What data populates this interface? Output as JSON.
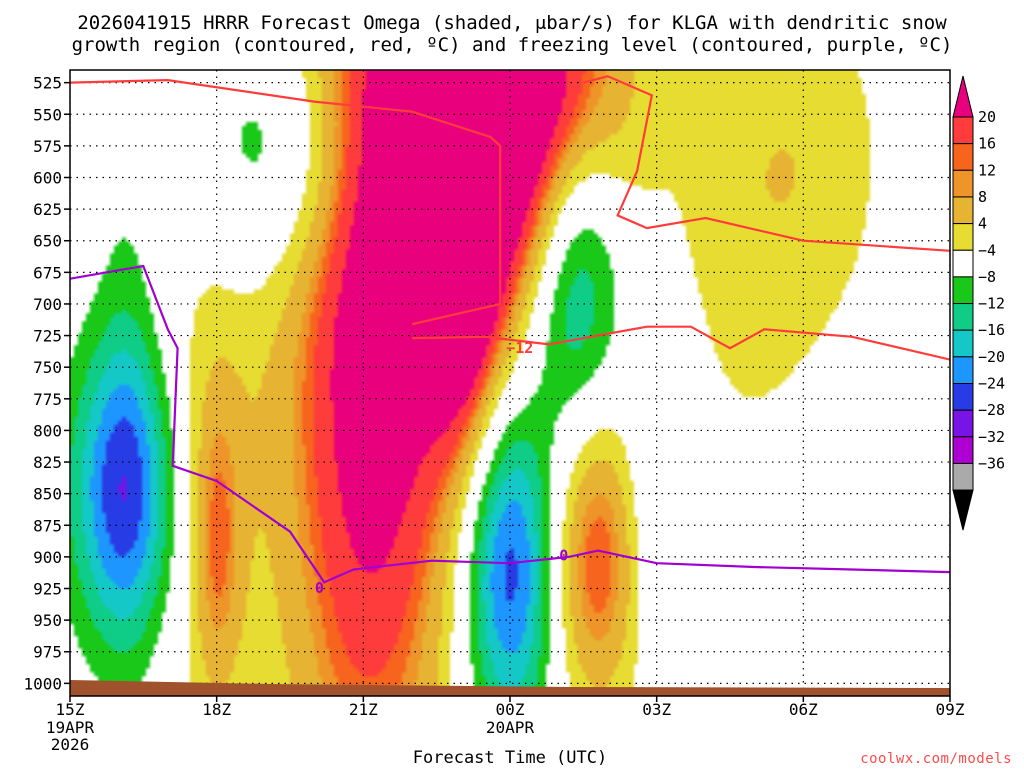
{
  "chart_data": {
    "type": "heatmap",
    "title_line1": "2026041915 HRRR Forecast Omega (shaded, μbar/s) for KLGA with dendritic snow",
    "title_line2": "growth region (contoured, red, ºC) and freezing level (contoured, purple, ºC)",
    "xlabel": "Forecast Time (UTC)",
    "x_ticks": [
      {
        "h": 0,
        "label": "15Z",
        "sub": [
          "19APR",
          "2026"
        ]
      },
      {
        "h": 3,
        "label": "18Z",
        "sub": []
      },
      {
        "h": 6,
        "label": "21Z",
        "sub": []
      },
      {
        "h": 9,
        "label": "00Z",
        "sub": [
          "20APR"
        ]
      },
      {
        "h": 12,
        "label": "03Z",
        "sub": []
      },
      {
        "h": 15,
        "label": "06Z",
        "sub": []
      },
      {
        "h": 18,
        "label": "09Z",
        "sub": []
      }
    ],
    "x_range_hours": [
      0,
      18
    ],
    "y_levels": [
      525,
      550,
      575,
      600,
      625,
      650,
      675,
      700,
      725,
      750,
      775,
      800,
      825,
      850,
      875,
      900,
      925,
      950,
      975,
      1000
    ],
    "y_range": [
      515,
      1010
    ],
    "colorbar": {
      "labels": [
        "20",
        "16",
        "12",
        "8",
        "4",
        "−4",
        "−8",
        "−12",
        "−16",
        "−20",
        "−24",
        "−28",
        "−32",
        "−36"
      ],
      "colors": [
        "#e8007d",
        "#ff3c3c",
        "#f7641e",
        "#ef9428",
        "#e6b432",
        "#e6dc32",
        "#ffffff",
        "#19c819",
        "#0fcd87",
        "#14c8c8",
        "#1e96ff",
        "#283ce6",
        "#7814e6",
        "#ad00d2",
        "#aaaaaa",
        "#000000"
      ]
    },
    "omega_blobs": [
      {
        "h": 1.2,
        "p": 760,
        "rh": 0.65,
        "rp": 250,
        "peak": -4
      },
      {
        "h": 1.1,
        "p": 848,
        "rh": 1.1,
        "rp": 120,
        "peak": -22
      },
      {
        "h": 4.5,
        "p": 580,
        "rh": 2.0,
        "rp": 110,
        "peak": -13
      },
      {
        "h": 2.8,
        "p": 800,
        "rh": 1.4,
        "rp": 280,
        "peak": 6
      },
      {
        "h": 3.0,
        "p": 890,
        "rh": 0.5,
        "rp": 120,
        "peak": 10
      },
      {
        "h": 6.1,
        "p": 770,
        "rh": 1.8,
        "rp": 390,
        "peak": 22
      },
      {
        "h": 7.2,
        "p": 545,
        "rh": 2.8,
        "rp": 170,
        "peak": 9
      },
      {
        "h": 8.0,
        "p": 580,
        "rh": 1.8,
        "rp": 250,
        "peak": 12
      },
      {
        "h": 8.0,
        "p": 640,
        "rh": 0.7,
        "rp": 150,
        "peak": 19
      },
      {
        "h": 10.1,
        "p": 535,
        "rh": 1.5,
        "rp": 120,
        "peak": 20
      },
      {
        "h": 9.0,
        "p": 600,
        "rh": 1.2,
        "rp": 180,
        "peak": 8
      },
      {
        "h": 10.3,
        "p": 670,
        "rh": 1.0,
        "rp": 160,
        "peak": -19
      },
      {
        "h": 9.0,
        "p": 905,
        "rh": 0.95,
        "rp": 135,
        "peak": -25
      },
      {
        "h": 10.8,
        "p": 890,
        "rh": 1.1,
        "rp": 130,
        "peak": 19
      },
      {
        "h": 11.9,
        "p": 865,
        "rh": 0.8,
        "rp": 125,
        "peak": -8
      },
      {
        "h": 13.8,
        "p": 620,
        "rh": 1.6,
        "rp": 220,
        "peak": 6
      },
      {
        "h": 15.5,
        "p": 585,
        "rh": 1.5,
        "rp": 150,
        "peak": 5
      }
    ],
    "dgz_top_minus12": [
      [
        0,
        525
      ],
      [
        2,
        523
      ],
      [
        5,
        540
      ],
      [
        7,
        548
      ],
      [
        8.6,
        568
      ],
      [
        8.8,
        575
      ],
      [
        8.8,
        700
      ],
      [
        7,
        716
      ]
    ],
    "dgz_upper_branch": [
      [
        10.5,
        525
      ],
      [
        11,
        520
      ],
      [
        11.9,
        535
      ],
      [
        11.6,
        595
      ],
      [
        11.2,
        630
      ],
      [
        11.8,
        640
      ],
      [
        13,
        632
      ],
      [
        15,
        650
      ],
      [
        18,
        658
      ]
    ],
    "dgz_lower_branch": [
      [
        7,
        727
      ],
      [
        8.5,
        726
      ],
      [
        9.8,
        732
      ],
      [
        11.8,
        718
      ],
      [
        12.7,
        718
      ],
      [
        13.5,
        735
      ],
      [
        14.2,
        720
      ],
      [
        16,
        726
      ],
      [
        18,
        744
      ]
    ],
    "contour_label_minus12": "−12",
    "freezing_level": [
      [
        0,
        680
      ],
      [
        1.5,
        670
      ],
      [
        2,
        720
      ],
      [
        2.2,
        735
      ],
      [
        2.1,
        828
      ],
      [
        3,
        840
      ],
      [
        4.5,
        880
      ],
      [
        5.2,
        920
      ],
      [
        5.8,
        910
      ],
      [
        7.4,
        903
      ],
      [
        9.0,
        905
      ],
      [
        10.2,
        900
      ],
      [
        10.8,
        895
      ],
      [
        12,
        905
      ],
      [
        14,
        908
      ],
      [
        16,
        910
      ],
      [
        18,
        912
      ]
    ],
    "freezing_label": "0",
    "watermark": "coolwx.com/models"
  }
}
